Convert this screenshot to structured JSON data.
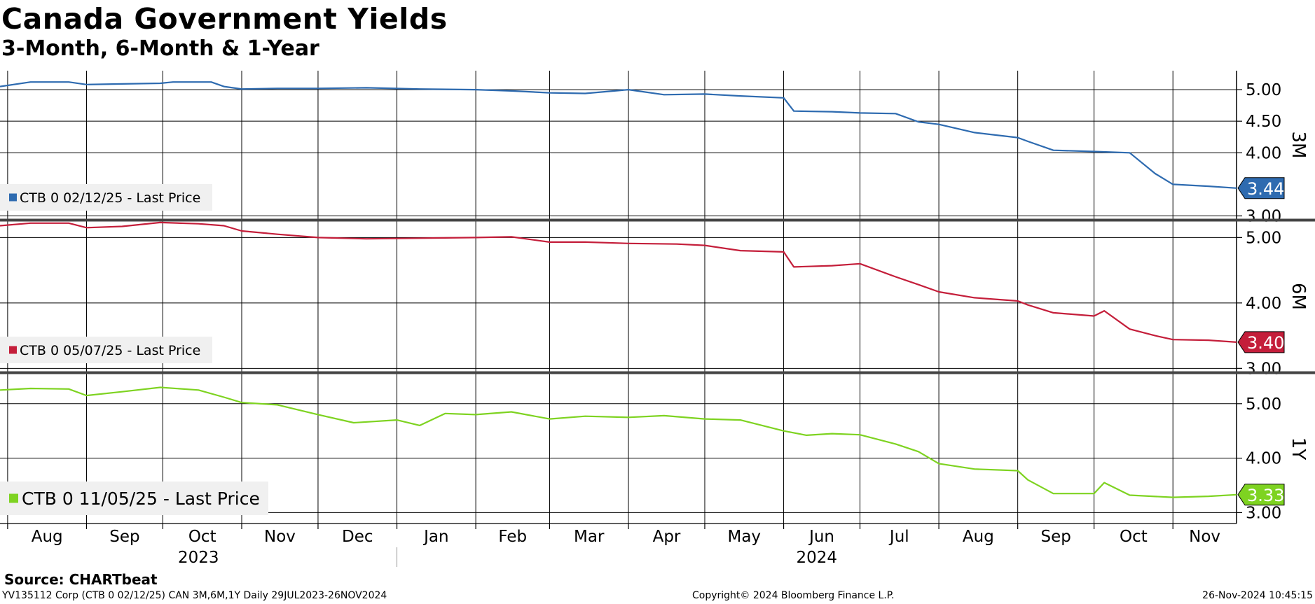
{
  "title": "Canada Government Yields",
  "subtitle": "3-Month, 6-Month & 1-Year",
  "footer": {
    "source": "Source:  CHARTbeat",
    "left": "YV135112 Corp (CTB 0 02/12/25) CAN 3M,6M,1Y  Daily 29JUL2023-26NOV2024",
    "center": "Copyright© 2024 Bloomberg Finance L.P.",
    "right": "26-Nov-2024 10:45:15"
  },
  "chart_data": {
    "type": "line",
    "x_axis": {
      "start": "2023-07-29",
      "end": "2024-11-26",
      "month_labels": [
        "Aug",
        "Sep",
        "Oct",
        "Nov",
        "Dec",
        "Jan",
        "Feb",
        "Mar",
        "Apr",
        "May",
        "Jun",
        "Jul",
        "Aug",
        "Sep",
        "Oct",
        "Nov"
      ],
      "year_labels": [
        "2023",
        "2024"
      ]
    },
    "grid": true,
    "panels": [
      {
        "axis_title": "3M",
        "ylim": [
          2.95,
          5.3
        ],
        "yticks": [
          "3.00",
          "4.00",
          "4.50",
          "5.00"
        ],
        "series": {
          "name": "CTB 0 02/12/25 - Last Price",
          "color": "#2e6bb0",
          "last_value": "3.44",
          "x": [
            "2023-07-29",
            "2023-08-10",
            "2023-08-25",
            "2023-09-01",
            "2023-09-15",
            "2023-09-30",
            "2023-10-05",
            "2023-10-20",
            "2023-10-25",
            "2023-11-01",
            "2023-11-15",
            "2023-12-01",
            "2023-12-20",
            "2024-01-10",
            "2024-02-01",
            "2024-02-15",
            "2024-03-01",
            "2024-03-15",
            "2024-04-01",
            "2024-04-15",
            "2024-05-01",
            "2024-05-15",
            "2024-06-01",
            "2024-06-05",
            "2024-06-20",
            "2024-07-01",
            "2024-07-15",
            "2024-07-24",
            "2024-08-01",
            "2024-08-15",
            "2024-09-01",
            "2024-09-05",
            "2024-09-15",
            "2024-10-01",
            "2024-10-15",
            "2024-10-25",
            "2024-11-01",
            "2024-11-15",
            "2024-11-26"
          ],
          "y": [
            5.05,
            5.12,
            5.12,
            5.08,
            5.09,
            5.1,
            5.12,
            5.12,
            5.05,
            5.01,
            5.02,
            5.02,
            5.03,
            5.01,
            5.0,
            4.98,
            4.95,
            4.94,
            5.0,
            4.92,
            4.93,
            4.9,
            4.87,
            4.66,
            4.65,
            4.63,
            4.62,
            4.49,
            4.45,
            4.32,
            4.24,
            4.18,
            4.04,
            4.02,
            4.0,
            3.67,
            3.5,
            3.47,
            3.44
          ]
        }
      },
      {
        "axis_title": "6M",
        "ylim": [
          2.95,
          5.25
        ],
        "yticks": [
          "3.00",
          "4.00",
          "5.00"
        ],
        "series": {
          "name": "CTB 0 05/07/25 - Last Price",
          "color": "#c41e3a",
          "last_value": "3.40",
          "x": [
            "2023-07-29",
            "2023-08-10",
            "2023-08-25",
            "2023-09-01",
            "2023-09-15",
            "2023-09-30",
            "2023-10-15",
            "2023-10-25",
            "2023-11-01",
            "2023-11-15",
            "2023-12-01",
            "2023-12-20",
            "2024-01-10",
            "2024-02-01",
            "2024-02-15",
            "2024-03-01",
            "2024-03-15",
            "2024-04-01",
            "2024-04-20",
            "2024-05-01",
            "2024-05-15",
            "2024-06-01",
            "2024-06-05",
            "2024-06-20",
            "2024-07-01",
            "2024-07-15",
            "2024-07-24",
            "2024-08-01",
            "2024-08-15",
            "2024-09-01",
            "2024-09-05",
            "2024-09-15",
            "2024-10-01",
            "2024-10-05",
            "2024-10-15",
            "2024-10-25",
            "2024-11-01",
            "2024-11-15",
            "2024-11-26"
          ],
          "y": [
            5.18,
            5.22,
            5.22,
            5.15,
            5.17,
            5.23,
            5.21,
            5.18,
            5.1,
            5.05,
            5.0,
            4.98,
            4.99,
            5.0,
            5.01,
            4.93,
            4.93,
            4.91,
            4.9,
            4.88,
            4.8,
            4.78,
            4.55,
            4.57,
            4.6,
            4.4,
            4.28,
            4.17,
            4.08,
            4.03,
            3.97,
            3.85,
            3.8,
            3.88,
            3.6,
            3.5,
            3.44,
            3.43,
            3.4
          ]
        }
      },
      {
        "axis_title": "1Y",
        "ylim": [
          2.8,
          5.55
        ],
        "yticks": [
          "3.00",
          "4.00",
          "5.00"
        ],
        "series": {
          "name": "CTB 0 11/05/25 - Last Price",
          "color": "#7ed321",
          "last_value": "3.33",
          "x": [
            "2023-07-29",
            "2023-08-10",
            "2023-08-25",
            "2023-09-01",
            "2023-09-15",
            "2023-09-30",
            "2023-10-15",
            "2023-10-25",
            "2023-11-01",
            "2023-11-15",
            "2023-12-01",
            "2023-12-15",
            "2024-01-01",
            "2024-01-10",
            "2024-01-20",
            "2024-02-01",
            "2024-02-15",
            "2024-03-01",
            "2024-03-15",
            "2024-04-01",
            "2024-04-15",
            "2024-05-01",
            "2024-05-15",
            "2024-06-01",
            "2024-06-10",
            "2024-06-20",
            "2024-07-01",
            "2024-07-15",
            "2024-07-24",
            "2024-08-01",
            "2024-08-15",
            "2024-09-01",
            "2024-09-05",
            "2024-09-15",
            "2024-10-01",
            "2024-10-05",
            "2024-10-15",
            "2024-11-01",
            "2024-11-15",
            "2024-11-26"
          ],
          "y": [
            5.25,
            5.28,
            5.27,
            5.15,
            5.22,
            5.3,
            5.25,
            5.12,
            5.02,
            4.98,
            4.8,
            4.65,
            4.7,
            4.6,
            4.82,
            4.8,
            4.85,
            4.72,
            4.77,
            4.75,
            4.78,
            4.72,
            4.7,
            4.5,
            4.42,
            4.45,
            4.43,
            4.26,
            4.12,
            3.9,
            3.8,
            3.77,
            3.6,
            3.35,
            3.35,
            3.55,
            3.32,
            3.28,
            3.3,
            3.33
          ]
        }
      }
    ]
  }
}
